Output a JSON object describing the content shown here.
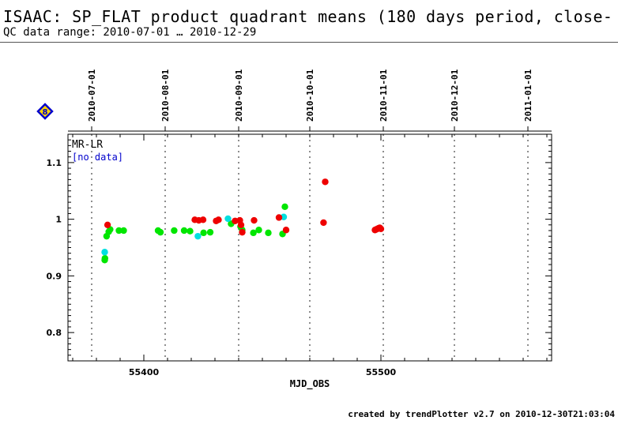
{
  "header": {
    "title": "ISAAC: SP_FLAT product quadrant means (180 days period, close-",
    "subtitle": "QC data range: 2010-07-01 … 2010-12-29"
  },
  "footer": {
    "text": "created by trendPlotter v2.7 on 2010-12-30T21:03:04"
  },
  "badge": {
    "label": "8",
    "icon": "diamond-icon",
    "fill": "#ffd400",
    "border": "#0000cc"
  },
  "chart_data": {
    "type": "scatter",
    "xlabel": "MJD_OBS",
    "ylabel": "",
    "xlim": [
      55368,
      55572
    ],
    "ylim": [
      0.75,
      1.15
    ],
    "x_ticks": [
      55400,
      55500
    ],
    "y_ticks": [
      0.8,
      0.9,
      1.0,
      1.1
    ],
    "y_tick_labels": [
      "0.8",
      "0.9",
      "1",
      "1.1"
    ],
    "date_markers": [
      {
        "label": "2010-07-01",
        "mjd": 55378
      },
      {
        "label": "2010-08-01",
        "mjd": 55409
      },
      {
        "label": "2010-09-01",
        "mjd": 55440
      },
      {
        "label": "2010-10-01",
        "mjd": 55470
      },
      {
        "label": "2010-11-01",
        "mjd": 55501
      },
      {
        "label": "2010-12-01",
        "mjd": 55531
      },
      {
        "label": "2011-01-01",
        "mjd": 55562
      }
    ],
    "annotations": [
      {
        "text": "MR-LR",
        "color": "#000000"
      },
      {
        "text": "[no data]",
        "color": "#0000cc"
      }
    ],
    "series": [
      {
        "color": "#00e600",
        "points": [
          [
            55383.5,
            0.928
          ],
          [
            55383.6,
            0.931
          ],
          [
            55384.3,
            0.97
          ],
          [
            55385.2,
            0.978
          ],
          [
            55385.8,
            0.982
          ],
          [
            55389.5,
            0.98
          ],
          [
            55391.5,
            0.98
          ],
          [
            55406.0,
            0.98
          ],
          [
            55407.0,
            0.977
          ],
          [
            55412.8,
            0.98
          ],
          [
            55417.0,
            0.98
          ],
          [
            55419.5,
            0.979
          ],
          [
            55425.2,
            0.976
          ],
          [
            55428.0,
            0.977
          ],
          [
            55436.8,
            0.992
          ],
          [
            55440.8,
            0.987
          ],
          [
            55441.5,
            0.981
          ],
          [
            55446.2,
            0.976
          ],
          [
            55448.5,
            0.981
          ],
          [
            55452.5,
            0.976
          ],
          [
            55458.5,
            0.974
          ],
          [
            55459.5,
            1.022
          ]
        ]
      },
      {
        "color": "#00e0e0",
        "points": [
          [
            55383.5,
            0.942
          ],
          [
            55422.8,
            0.97
          ],
          [
            55435.5,
            1.001
          ],
          [
            55459.0,
            1.004
          ]
        ]
      },
      {
        "color": "#ee0000",
        "points": [
          [
            55384.7,
            0.99
          ],
          [
            55421.5,
            0.999
          ],
          [
            55423.2,
            0.998
          ],
          [
            55425.0,
            0.999
          ],
          [
            55430.5,
            0.997
          ],
          [
            55431.5,
            0.999
          ],
          [
            55438.5,
            0.997
          ],
          [
            55440.5,
            0.998
          ],
          [
            55441.0,
            0.99
          ],
          [
            55441.5,
            0.977
          ],
          [
            55446.5,
            0.998
          ],
          [
            55457.0,
            1.003
          ],
          [
            55460.0,
            0.981
          ],
          [
            55475.8,
            0.994
          ],
          [
            55476.5,
            1.066
          ],
          [
            55497.5,
            0.981
          ],
          [
            55498.0,
            0.982
          ],
          [
            55498.5,
            0.983
          ],
          [
            55499.0,
            0.984
          ],
          [
            55499.5,
            0.985
          ],
          [
            55500.0,
            0.983
          ]
        ]
      }
    ]
  }
}
